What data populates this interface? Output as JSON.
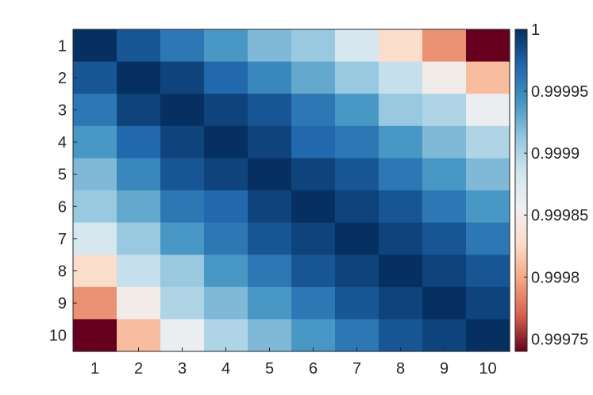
{
  "chart_data": {
    "type": "heatmap",
    "title": "",
    "xlabel": "",
    "ylabel": "",
    "x_categories": [
      "1",
      "2",
      "3",
      "4",
      "5",
      "6",
      "7",
      "8",
      "9",
      "10"
    ],
    "y_categories": [
      "1",
      "2",
      "3",
      "4",
      "5",
      "6",
      "7",
      "8",
      "9",
      "10"
    ],
    "values": [
      [
        1.0,
        0.99998,
        0.99996,
        0.99994,
        0.99992,
        0.99991,
        0.99988,
        0.99983,
        0.99979,
        0.99974
      ],
      [
        0.99998,
        1.0,
        0.99999,
        0.99997,
        0.99995,
        0.99993,
        0.99991,
        0.99989,
        0.99985,
        0.99981
      ],
      [
        0.99996,
        0.99999,
        1.0,
        0.99999,
        0.99998,
        0.99996,
        0.99994,
        0.99991,
        0.9999,
        0.99986
      ],
      [
        0.99994,
        0.99997,
        0.99999,
        1.0,
        0.99999,
        0.99997,
        0.99996,
        0.99994,
        0.99992,
        0.9999
      ],
      [
        0.99992,
        0.99995,
        0.99998,
        0.99999,
        1.0,
        0.99999,
        0.99998,
        0.99996,
        0.99994,
        0.99992
      ],
      [
        0.99991,
        0.99993,
        0.99996,
        0.99997,
        0.99999,
        1.0,
        0.99999,
        0.99998,
        0.99996,
        0.99994
      ],
      [
        0.99988,
        0.99991,
        0.99994,
        0.99996,
        0.99998,
        0.99999,
        1.0,
        0.99999,
        0.99998,
        0.99996
      ],
      [
        0.99983,
        0.99989,
        0.99991,
        0.99994,
        0.99996,
        0.99998,
        0.99999,
        1.0,
        0.99999,
        0.99998
      ],
      [
        0.99979,
        0.99985,
        0.9999,
        0.99992,
        0.99994,
        0.99996,
        0.99998,
        0.99999,
        1.0,
        0.99999
      ],
      [
        0.99974,
        0.99981,
        0.99986,
        0.9999,
        0.99992,
        0.99994,
        0.99996,
        0.99998,
        0.99999,
        1.0
      ]
    ],
    "colorbar": {
      "min": 0.99974,
      "max": 1.0,
      "ticks": [
        1.0,
        0.99995,
        0.9999,
        0.99985,
        0.9998,
        0.99975
      ],
      "tick_labels": [
        "1",
        "0.99995",
        "0.9999",
        "0.99985",
        "0.9998",
        "0.99975"
      ],
      "placement": "right"
    },
    "colormap": [
      "#67001f",
      "#d6604d",
      "#f4a582",
      "#fddbc7",
      "#f0f0f0",
      "#d1e5f0",
      "#92c5de",
      "#4393c3",
      "#2166ac",
      "#053061"
    ],
    "grid": false
  }
}
